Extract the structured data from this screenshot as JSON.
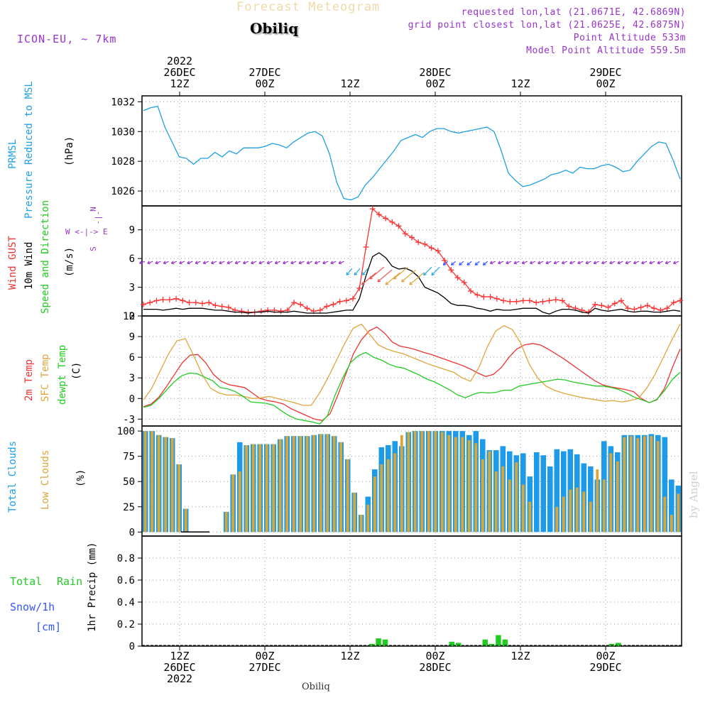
{
  "header": {
    "title": "Forecast Meteogram",
    "place": "Obiliq",
    "model": "ICON-EU, ~ 7km",
    "requested": "requested lon,lat (21.0671E, 42.6869N)",
    "gridpoint": "grid point closest lon,lat (21.0625E, 42.6875N)",
    "point_altitude": "Point Altitude 533m",
    "model_altitude": "Model Point Altitude 559.5m",
    "colors": {
      "title": "#f0d9a8",
      "meta": "#9933cc"
    }
  },
  "time_axis": {
    "top_labels": [
      {
        "l1": "2022",
        "l2": "26DEC",
        "l3": "12Z"
      },
      {
        "l1": "",
        "l2": "27DEC",
        "l3": "00Z"
      },
      {
        "l1": "",
        "l2": "",
        "l3": "12Z"
      },
      {
        "l1": "",
        "l2": "28DEC",
        "l3": "00Z"
      },
      {
        "l1": "",
        "l2": "",
        "l3": "12Z"
      },
      {
        "l1": "",
        "l2": "29DEC",
        "l3": "00Z"
      }
    ],
    "bottom_labels": [
      {
        "l1": "12Z",
        "l2": "26DEC",
        "l3": "2022"
      },
      {
        "l1": "00Z",
        "l2": "27DEC",
        "l3": ""
      },
      {
        "l1": "12Z",
        "l2": "",
        "l3": ""
      },
      {
        "l1": "00Z",
        "l2": "28DEC",
        "l3": ""
      },
      {
        "l1": "12Z",
        "l2": "",
        "l3": ""
      },
      {
        "l1": "00Z",
        "l2": "29DEC",
        "l3": ""
      }
    ],
    "footer": "Obiliq",
    "watermark": "by Angel"
  },
  "chart_data": [
    {
      "type": "line",
      "panel": "pressure",
      "labels": {
        "l1": "PRMSL",
        "l2": "Pressure Reduced to MSL",
        "unit": "(hPa)"
      },
      "ylim": [
        1025,
        1032.4
      ],
      "yticks": [
        1026,
        1028,
        1030,
        1032
      ],
      "color": "#1ea0e6",
      "series": [
        {
          "values": [
            1031.4,
            1031.6,
            1031.7,
            1030.3,
            1029.3,
            1028.3,
            1028.2,
            1027.8,
            1028.2,
            1028.2,
            1028.6,
            1028.3,
            1028.7,
            1028.5,
            1028.9,
            1028.9,
            1028.9,
            1029.0,
            1029.2,
            1029.1,
            1028.9,
            1029.3,
            1029.6,
            1029.9,
            1030.0,
            1029.7,
            1028.5,
            1026.6,
            1025.5,
            1025.4,
            1025.6,
            1026.4,
            1026.9,
            1027.5,
            1028.1,
            1028.7,
            1029.4,
            1029.6,
            1029.8,
            1029.6,
            1030.0,
            1030.2,
            1030.2,
            1030.0,
            1029.9,
            1030.0,
            1030.1,
            1030.2,
            1030.3,
            1030.0,
            1028.7,
            1027.2,
            1026.7,
            1026.3,
            1026.4,
            1026.6,
            1026.8,
            1027.1,
            1027.2,
            1027.4,
            1027.2,
            1027.6,
            1027.5,
            1027.5,
            1027.7,
            1027.8,
            1027.6,
            1027.3,
            1027.4,
            1028.0,
            1028.5,
            1029.0,
            1029.3,
            1029.2,
            1028.1,
            1026.8
          ]
        }
      ]
    },
    {
      "type": "line",
      "panel": "wind",
      "labels": {
        "l1": "Wind GUST",
        "l2": "10m Wind",
        "l3": "Speed and Direction",
        "unit": "(m/s)",
        "compass": "W <-|-> E"
      },
      "ylim": [
        0,
        11.5
      ],
      "yticks": [
        0,
        3,
        6,
        9
      ],
      "series": [
        {
          "color": "#ff3333",
          "values": [
            1.2,
            1.4,
            1.6,
            1.7,
            1.7,
            1.8,
            1.6,
            1.4,
            1.4,
            1.3,
            1.4,
            1.1,
            1.0,
            0.9,
            0.6,
            0.5,
            0.4,
            0.4,
            0.5,
            0.6,
            0.6,
            0.5,
            0.6,
            1.4,
            1.2,
            0.8,
            0.5,
            0.6,
            1.0,
            1.2,
            1.5,
            1.6,
            1.8,
            2.9,
            7.2,
            11.2,
            10.6,
            10.2,
            9.8,
            9.4,
            8.6,
            8.2,
            7.7,
            7.5,
            7.1,
            6.8,
            5.8,
            4.8,
            4.0,
            3.5,
            2.6,
            2.2,
            2.0,
            2.0,
            1.8,
            1.6,
            1.5,
            1.5,
            1.6,
            1.6,
            1.4,
            1.5,
            1.6,
            1.7,
            1.6,
            1.0,
            0.8,
            0.6,
            0.4,
            1.2,
            1.1,
            0.9,
            1.3,
            1.6,
            0.8,
            0.7,
            0.9,
            1.1,
            0.8,
            0.6,
            0.8,
            1.4,
            1.6
          ]
        },
        {
          "color": "#000000",
          "values": [
            0.7,
            0.7,
            0.7,
            0.6,
            0.7,
            0.8,
            0.7,
            0.8,
            0.8,
            0.8,
            0.7,
            0.6,
            0.6,
            0.5,
            0.4,
            0.4,
            0.3,
            0.4,
            0.4,
            0.5,
            0.4,
            0.4,
            0.4,
            0.5,
            0.4,
            0.3,
            0.3,
            0.3,
            0.3,
            0.4,
            0.5,
            0.6,
            0.6,
            1.8,
            4.2,
            6.2,
            6.6,
            6.1,
            5.2,
            4.9,
            5.0,
            4.7,
            4.1,
            3.0,
            2.7,
            2.4,
            1.9,
            1.3,
            1.1,
            1.1,
            1.0,
            0.8,
            0.7,
            0.5,
            0.7,
            0.6,
            0.6,
            0.7,
            0.8,
            0.8,
            0.8,
            0.4,
            0.2,
            0.5,
            0.7,
            0.7,
            0.6,
            0.4,
            0.3,
            0.8,
            0.6,
            0.5,
            0.6,
            0.7,
            0.5,
            0.4,
            0.5,
            0.5,
            0.4,
            0.4,
            0.5,
            0.6,
            0.5
          ]
        }
      ],
      "wind_arrows": {
        "level": 5.7,
        "colors": [
          "#9933cc",
          "#3355ff",
          "#22aadd",
          "#e2a43c",
          "#ee5555"
        ]
      }
    },
    {
      "type": "line",
      "panel": "temperature",
      "labels": {
        "l1": "2m Temp",
        "l2": "SFC Temp",
        "l3": "dewpt Temp",
        "unit": "(C)"
      },
      "ylim": [
        -4,
        12
      ],
      "yticks": [
        -3,
        0,
        3,
        6,
        9,
        12
      ],
      "series": [
        {
          "color": "#ee3333",
          "values": [
            -1.2,
            -0.8,
            0.2,
            1.8,
            3.5,
            5.2,
            6.3,
            6.4,
            5.2,
            3.5,
            2.5,
            2.0,
            1.8,
            1.6,
            0.8,
            0.0,
            -0.3,
            -0.5,
            -0.8,
            -1.5,
            -2.0,
            -2.5,
            -3.0,
            -3.2,
            -2.2,
            0.5,
            3.5,
            6.5,
            8.5,
            9.8,
            10.4,
            9.5,
            8.2,
            7.6,
            7.4,
            7.1,
            6.7,
            6.4,
            6.0,
            5.6,
            5.2,
            4.8,
            4.3,
            3.7,
            3.2,
            3.5,
            4.5,
            6.0,
            7.2,
            7.8,
            8.0,
            7.8,
            7.2,
            6.5,
            5.8,
            5.0,
            4.2,
            3.4,
            2.6,
            2.0,
            1.7,
            1.5,
            1.3,
            1.0,
            0.0,
            -0.6,
            -0.2,
            1.5,
            4.5,
            7.2
          ]
        },
        {
          "color": "#e2a43c",
          "values": [
            -0.2,
            1.5,
            4.0,
            6.5,
            8.4,
            8.7,
            6.2,
            3.5,
            1.5,
            0.8,
            0.5,
            0.5,
            0.3,
            0.0,
            0.1,
            0.3,
            0.0,
            -0.3,
            -0.6,
            -1.0,
            -1.0,
            0.8,
            3.0,
            5.5,
            8.0,
            10.2,
            10.8,
            9.3,
            7.8,
            7.2,
            6.8,
            6.5,
            6.0,
            5.5,
            5.0,
            4.6,
            4.2,
            3.8,
            3.0,
            2.5,
            4.5,
            7.5,
            9.8,
            10.6,
            10.0,
            8.0,
            5.0,
            3.0,
            1.8,
            1.2,
            0.8,
            0.5,
            0.2,
            0.0,
            -0.2,
            -0.4,
            -0.3,
            -0.5,
            -0.3,
            0.0,
            1.5,
            3.5,
            6.0,
            8.5,
            10.8
          ]
        },
        {
          "color": "#22cc22",
          "values": [
            -1.3,
            -1.0,
            0.0,
            1.2,
            2.4,
            3.3,
            3.7,
            3.6,
            3.1,
            2.6,
            1.6,
            1.4,
            1.0,
            0.3,
            -0.5,
            -0.6,
            -0.7,
            -1.0,
            -1.8,
            -2.5,
            -3.0,
            -3.2,
            -3.4,
            -3.7,
            -2.5,
            0.5,
            3.0,
            5.2,
            6.2,
            6.7,
            6.0,
            5.6,
            5.0,
            4.6,
            4.4,
            3.9,
            3.4,
            2.8,
            2.4,
            1.8,
            1.2,
            0.5,
            0.1,
            0.6,
            0.9,
            0.8,
            0.9,
            1.2,
            1.2,
            1.8,
            2.0,
            2.2,
            2.4,
            2.6,
            2.8,
            2.7,
            2.4,
            2.2,
            2.0,
            1.8,
            1.8,
            1.6,
            1.3,
            0.8,
            0.2,
            -0.2,
            -0.6,
            -0.1,
            1.2,
            2.8,
            3.8
          ]
        }
      ]
    },
    {
      "type": "bar",
      "panel": "clouds",
      "labels": {
        "l1": "Total Clouds",
        "l2": "Low Clouds",
        "unit": "(%)"
      },
      "ylim": [
        -4,
        105
      ],
      "yticks": [
        0,
        25,
        50,
        75,
        100
      ],
      "series": [
        {
          "color": "#1e9be8",
          "values": [
            100,
            100,
            96,
            94,
            93,
            67,
            23,
            0,
            0,
            0,
            0,
            0,
            20,
            57,
            89,
            86,
            87,
            87,
            87,
            87,
            92,
            95,
            95,
            95,
            95,
            96,
            97,
            97,
            95,
            89,
            72,
            39,
            17,
            35,
            62,
            84,
            86,
            90,
            85,
            99,
            100,
            100,
            100,
            100,
            100,
            100,
            100,
            100,
            96,
            100,
            92,
            81,
            81,
            85,
            80,
            76,
            78,
            55,
            79,
            76,
            65,
            82,
            80,
            82,
            77,
            68,
            65,
            52,
            90,
            85,
            79,
            96,
            96,
            96,
            96,
            97,
            96,
            94,
            52,
            46
          ]
        },
        {
          "color": "#d9a638",
          "values": [
            100,
            100,
            96,
            94,
            93,
            67,
            23,
            0,
            0,
            0,
            0,
            0,
            20,
            57,
            60,
            86,
            87,
            87,
            87,
            87,
            92,
            95,
            95,
            95,
            95,
            96,
            97,
            97,
            95,
            89,
            72,
            39,
            17,
            27,
            55,
            67,
            72,
            78,
            96,
            99,
            100,
            100,
            100,
            100,
            99,
            96,
            94,
            94,
            91,
            88,
            72,
            80,
            60,
            65,
            52,
            69,
            47,
            30,
            0,
            0,
            0,
            25,
            35,
            42,
            44,
            40,
            30,
            62,
            52,
            78,
            70,
            94,
            95,
            93,
            95,
            95,
            90,
            35,
            17,
            38
          ]
        }
      ]
    },
    {
      "type": "bar",
      "panel": "precip",
      "labels": {
        "l1": "Total",
        "l1b": "Rain",
        "l2": "Snow/1h",
        "l3": "[cm]",
        "unit": "1hr Precip (mm)"
      },
      "ylim": [
        0,
        1.0
      ],
      "yticks": [
        0,
        0.2,
        0.4,
        0.6,
        0.8
      ],
      "ytick_labels": [
        "0",
        "0.2",
        "0.4",
        "0.6",
        "0.8"
      ],
      "series": [
        {
          "color": "#22cc22",
          "values": [
            0,
            0,
            0,
            0,
            0,
            0,
            0,
            0,
            0,
            0,
            0,
            0,
            0,
            0,
            0,
            0,
            0,
            0,
            0,
            0,
            0,
            0,
            0,
            0,
            0,
            0,
            0,
            0,
            0,
            0,
            0,
            0,
            0,
            0,
            0.02,
            0.07,
            0.06,
            0,
            0,
            0,
            0,
            0,
            0,
            0,
            0,
            0,
            0.04,
            0.03,
            0,
            0,
            0,
            0.06,
            0.02,
            0.1,
            0.06,
            0,
            0,
            0,
            0,
            0,
            0,
            0,
            0,
            0,
            0,
            0,
            0,
            0,
            0,
            0,
            0.02,
            0.03,
            0,
            0,
            0,
            0,
            0,
            0,
            0,
            0,
            0
          ]
        }
      ]
    }
  ]
}
